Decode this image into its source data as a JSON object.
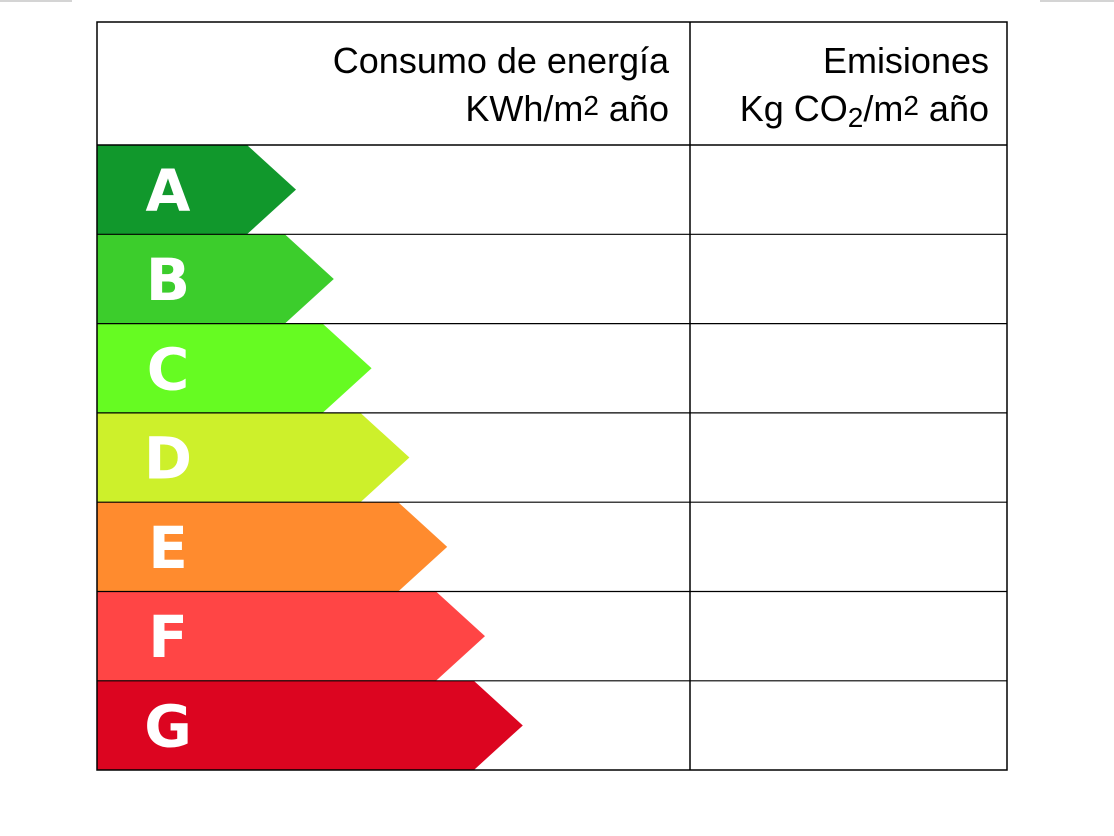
{
  "header": {
    "energy": {
      "line1": "Consumo de energía",
      "line2": [
        "KWh/m",
        "2",
        " año"
      ]
    },
    "emissions": {
      "line1": "Emisiones",
      "line2": [
        "Kg CO",
        "2",
        "/m",
        "2",
        " año"
      ]
    }
  },
  "rows": [
    {
      "letter": "A",
      "color": "#11982c"
    },
    {
      "letter": "B",
      "color": "#3ccd2c"
    },
    {
      "letter": "C",
      "color": "#66fb22"
    },
    {
      "letter": "D",
      "color": "#cdf02b"
    },
    {
      "letter": "E",
      "color": "#ff8b2e"
    },
    {
      "letter": "F",
      "color": "#ff4545"
    },
    {
      "letter": "G",
      "color": "#dc0520",
      "energy": null
    },
    {
      "letter": null
    }
  ],
  "indicator_color": "#ffc000"
}
